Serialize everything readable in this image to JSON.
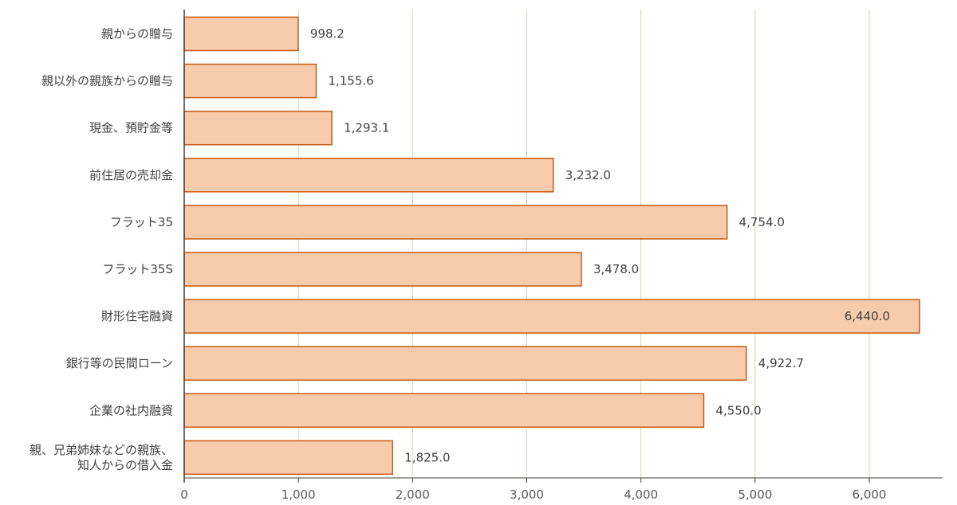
{
  "chart_data": {
    "type": "bar",
    "orientation": "horizontal",
    "categories": [
      [
        "親からの贈与"
      ],
      [
        "親以外の親族からの贈与"
      ],
      [
        "現金、預貯金等"
      ],
      [
        "前住居の売却金"
      ],
      [
        "フラット35"
      ],
      [
        "フラット35S"
      ],
      [
        "財形住宅融資"
      ],
      [
        "銀行等の民間ローン"
      ],
      [
        "企業の社内融資"
      ],
      [
        "親、兄弟姉妹などの親族、",
        "知人からの借入金"
      ]
    ],
    "values": [
      998.2,
      1155.6,
      1293.1,
      3232.0,
      4754.0,
      3478.0,
      6440.0,
      4922.7,
      4550.0,
      1825.0
    ],
    "value_labels": [
      "998.2",
      "1,155.6",
      "1,293.1",
      "3,232.0",
      "4,754.0",
      "3,478.0",
      "6,440.0",
      "4,922.7",
      "4,550.0",
      "1,825.0"
    ],
    "xticks": [
      0,
      1000,
      2000,
      3000,
      4000,
      5000,
      6000
    ],
    "xtick_labels": [
      "0",
      "1,000",
      "2,000",
      "3,000",
      "4,000",
      "5,000",
      "6,000"
    ],
    "xlim": [
      0,
      6500
    ],
    "grid": true,
    "legend": "none",
    "bar_fill": "#f8cbad",
    "bar_stroke": "#c55a11",
    "grid_color": "#c5dbb5",
    "axis_color": "#404040"
  }
}
